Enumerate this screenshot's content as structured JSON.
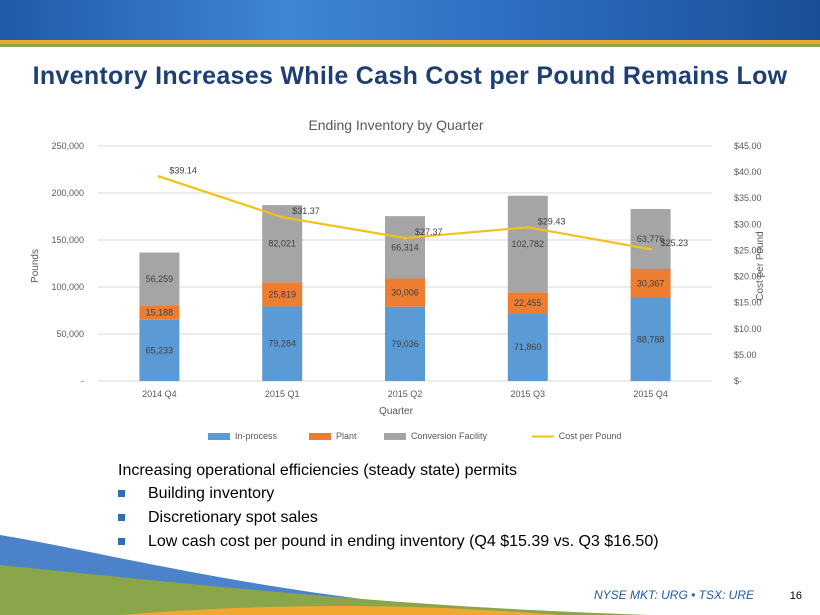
{
  "title": "Inventory Increases While Cash Cost per Pound Remains Low",
  "chart_data": {
    "type": "bar",
    "stacked": true,
    "title": "Ending Inventory  by Quarter",
    "xlabel": "Quarter",
    "ylabel": "Pounds",
    "y2label": "Cost  per Pound",
    "categories": [
      "2014 Q4",
      "2015 Q1",
      "2015 Q2",
      "2015 Q3",
      "2015 Q4"
    ],
    "ylim": [
      0,
      250000
    ],
    "y2lim": [
      0,
      45
    ],
    "yticks": [
      "-",
      "50,000",
      "100,000",
      "150,000",
      "200,000",
      "250,000"
    ],
    "y2ticks": [
      "$-",
      "$5.00",
      "$10.00",
      "$15.00",
      "$20.00",
      "$25.00",
      "$30.00",
      "$35.00",
      "$40.00",
      "$45.00"
    ],
    "series": [
      {
        "name": "In-process",
        "values": [
          65233,
          79284,
          79036,
          71860,
          88788
        ],
        "labels": [
          "65,233",
          "79,284",
          "79,036",
          "71,860",
          "88,788"
        ],
        "color": "#5b9bd5"
      },
      {
        "name": "Plant",
        "values": [
          15188,
          25819,
          30006,
          22455,
          30367
        ],
        "labels": [
          "15,188",
          "25,819",
          "30,006",
          "22,455",
          "30,367"
        ],
        "color": "#ed7d31"
      },
      {
        "name": "Conversion Facility",
        "values": [
          56259,
          82021,
          66314,
          102782,
          63776
        ],
        "labels": [
          "56,259",
          "82,021",
          "66,314",
          "102,782",
          "63,776"
        ],
        "color": "#a5a5a5"
      }
    ],
    "line": {
      "name": "Cost per Pound",
      "values": [
        39.14,
        31.37,
        27.37,
        29.43,
        25.23
      ],
      "labels": [
        "$39.14",
        "$31.37",
        "$27.37",
        "$29.43",
        "$25.23"
      ],
      "color": "#f2c21b"
    }
  },
  "bullets": {
    "lead": "Increasing operational efficiencies (steady state) permits",
    "items": [
      "Building inventory",
      "Discretionary spot sales",
      "Low cash cost per pound in ending inventory (Q4 $15.39 vs. Q3 $16.50)"
    ]
  },
  "footer": "NYSE MKT: URG • TSX: URE",
  "page_number": "16",
  "colors": {
    "banner": "#2b6cc0",
    "title": "#1e3f73",
    "orange": "#f0a830",
    "green": "#8aa54a",
    "bullet": "#2f6eb5"
  }
}
